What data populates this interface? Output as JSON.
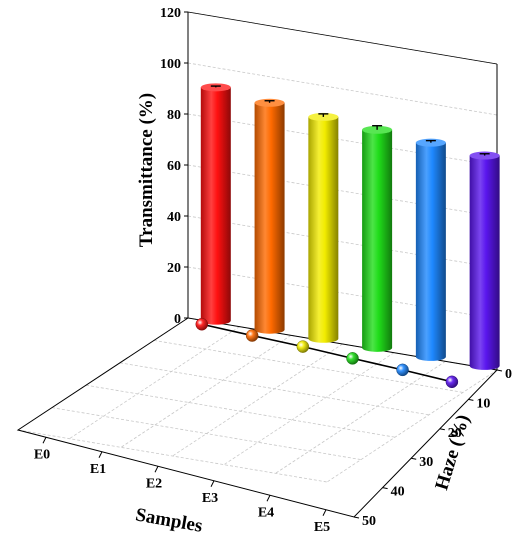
{
  "chart_data": {
    "type": "bar",
    "categories": [
      "E0",
      "E1",
      "E2",
      "E3",
      "E4",
      "E5"
    ],
    "zlabel": "Transmittance (%)",
    "xlabel": "Samples",
    "ylabel": "Haze (%)",
    "zlim": [
      0,
      120
    ],
    "zticks": [
      "0",
      "20",
      "40",
      "60",
      "80",
      "100",
      "120"
    ],
    "hazeTicks": [
      "0",
      "10",
      "20",
      "30",
      "40",
      "50"
    ],
    "hazeLim": [
      0,
      50
    ],
    "grid": true,
    "series": [
      {
        "values": [
          91.5,
          89.0,
          87.0,
          85.5,
          84.0,
          82.5
        ],
        "errors": [
          0.5,
          0.8,
          1.2,
          1.6,
          0.8,
          0.7
        ]
      },
      {
        "values": [
          0.8,
          1.8,
          2.7,
          3.9,
          5.0,
          6.3
        ]
      }
    ],
    "colors": [
      "#ff1010",
      "#ff6a00",
      "#f2ec00",
      "#20dd1a",
      "#1e88ff",
      "#5a16ee"
    ]
  }
}
